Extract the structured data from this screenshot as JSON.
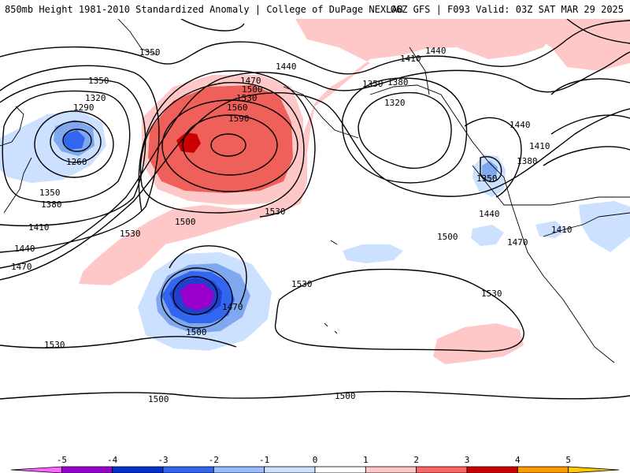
{
  "header": {
    "left_title": "850mb Height 1981-2010 Standardized Anomaly | College of DuPage NEXLAB",
    "right_title": "06Z GFS | F093 Valid: 03Z SAT MAR 29 2025"
  },
  "contour_labels": [
    "1350",
    "1350",
    "1320",
    "1290",
    "1260",
    "1350",
    "1380",
    "1410",
    "1440",
    "1470",
    "1530",
    "1500",
    "1470",
    "1440",
    "1530",
    "1560",
    "1590",
    "1530",
    "1500",
    "1470",
    "1500",
    "1530",
    "1530",
    "1410",
    "1440",
    "1350",
    "1380",
    "1320",
    "1440",
    "1410",
    "1380",
    "1350",
    "1440",
    "1470",
    "1500",
    "1530",
    "1410",
    "1500",
    "1500"
  ],
  "colorbar": {
    "ticks": [
      "-5",
      "-4",
      "-3",
      "-2",
      "-1",
      "0",
      "1",
      "2",
      "3",
      "4",
      "5"
    ],
    "colors": [
      "#ff66ff",
      "#9900cc",
      "#0033cc",
      "#3366ee",
      "#99bbff",
      "#cce0ff",
      "#ffffff",
      "#ffc8c8",
      "#ff6666",
      "#cc0000",
      "#ff9900",
      "#ffcc00"
    ]
  },
  "anomaly_colors": {
    "strong_pos": "#cc0000",
    "pos2": "#f0605a",
    "pos1": "#ffc8c8",
    "neg1": "#cce0ff",
    "neg2": "#7fa8ee",
    "neg3": "#3366ee",
    "neg4": "#1f3fcc",
    "neg5": "#9900cc"
  }
}
